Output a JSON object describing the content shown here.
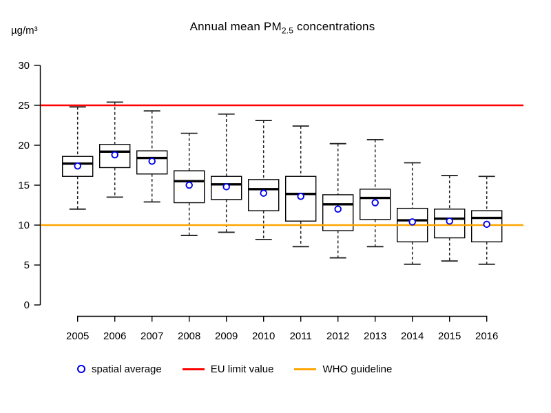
{
  "title": {
    "prefix": "Annual mean PM",
    "subscript": "2.5",
    "suffix": " concentrations"
  },
  "y_axis": {
    "unit_label": "µg/m³"
  },
  "legend": {
    "spatial_average_label": "spatial average",
    "eu_limit_label": "EU limit value",
    "who_guideline_label": "WHO guideline"
  },
  "colors": {
    "eu_limit": "#ff0000",
    "who_guideline": "#ffa500",
    "spatial_average": "#0000ee",
    "box_stroke": "#000000",
    "box_fill": "#ffffff"
  },
  "chart_data": {
    "type": "boxplot",
    "title": "Annual mean PM2.5 concentrations",
    "ylabel": "µg/m³",
    "xlabel": "",
    "ylim": [
      0,
      30
    ],
    "yticks": [
      0,
      5,
      10,
      15,
      20,
      25,
      30
    ],
    "grid": false,
    "legend_position": "bottom",
    "categories": [
      "2005",
      "2006",
      "2007",
      "2008",
      "2009",
      "2010",
      "2011",
      "2012",
      "2013",
      "2014",
      "2015",
      "2016"
    ],
    "boxes": [
      {
        "year": "2005",
        "whisker_low": 12.0,
        "q1": 16.1,
        "median": 17.7,
        "q3": 18.6,
        "whisker_high": 24.8,
        "mean": 17.4
      },
      {
        "year": "2006",
        "whisker_low": 13.5,
        "q1": 17.2,
        "median": 19.2,
        "q3": 20.1,
        "whisker_high": 25.4,
        "mean": 18.8
      },
      {
        "year": "2007",
        "whisker_low": 12.9,
        "q1": 16.4,
        "median": 18.4,
        "q3": 19.3,
        "whisker_high": 24.3,
        "mean": 18.0
      },
      {
        "year": "2008",
        "whisker_low": 8.7,
        "q1": 12.8,
        "median": 15.5,
        "q3": 16.8,
        "whisker_high": 21.5,
        "mean": 15.0
      },
      {
        "year": "2009",
        "whisker_low": 9.1,
        "q1": 13.2,
        "median": 15.1,
        "q3": 16.1,
        "whisker_high": 23.9,
        "mean": 14.8
      },
      {
        "year": "2010",
        "whisker_low": 8.2,
        "q1": 11.8,
        "median": 14.5,
        "q3": 15.7,
        "whisker_high": 23.1,
        "mean": 14.0
      },
      {
        "year": "2011",
        "whisker_low": 7.3,
        "q1": 10.5,
        "median": 13.9,
        "q3": 16.1,
        "whisker_high": 22.4,
        "mean": 13.6
      },
      {
        "year": "2012",
        "whisker_low": 5.9,
        "q1": 9.3,
        "median": 12.6,
        "q3": 13.8,
        "whisker_high": 20.2,
        "mean": 12.0
      },
      {
        "year": "2013",
        "whisker_low": 7.3,
        "q1": 10.7,
        "median": 13.4,
        "q3": 14.5,
        "whisker_high": 20.7,
        "mean": 12.8
      },
      {
        "year": "2014",
        "whisker_low": 5.1,
        "q1": 7.9,
        "median": 10.6,
        "q3": 12.1,
        "whisker_high": 17.8,
        "mean": 10.4
      },
      {
        "year": "2015",
        "whisker_low": 5.5,
        "q1": 8.4,
        "median": 10.8,
        "q3": 12.0,
        "whisker_high": 16.2,
        "mean": 10.5
      },
      {
        "year": "2016",
        "whisker_low": 5.1,
        "q1": 7.9,
        "median": 10.9,
        "q3": 11.8,
        "whisker_high": 16.1,
        "mean": 10.1
      }
    ],
    "reference_lines": [
      {
        "label": "EU limit value",
        "value": 25,
        "color": "#ff0000"
      },
      {
        "label": "WHO guideline",
        "value": 10,
        "color": "#ffa500"
      }
    ],
    "mean_marker": {
      "label": "spatial average",
      "shape": "open-circle",
      "color": "#0000ee"
    }
  }
}
